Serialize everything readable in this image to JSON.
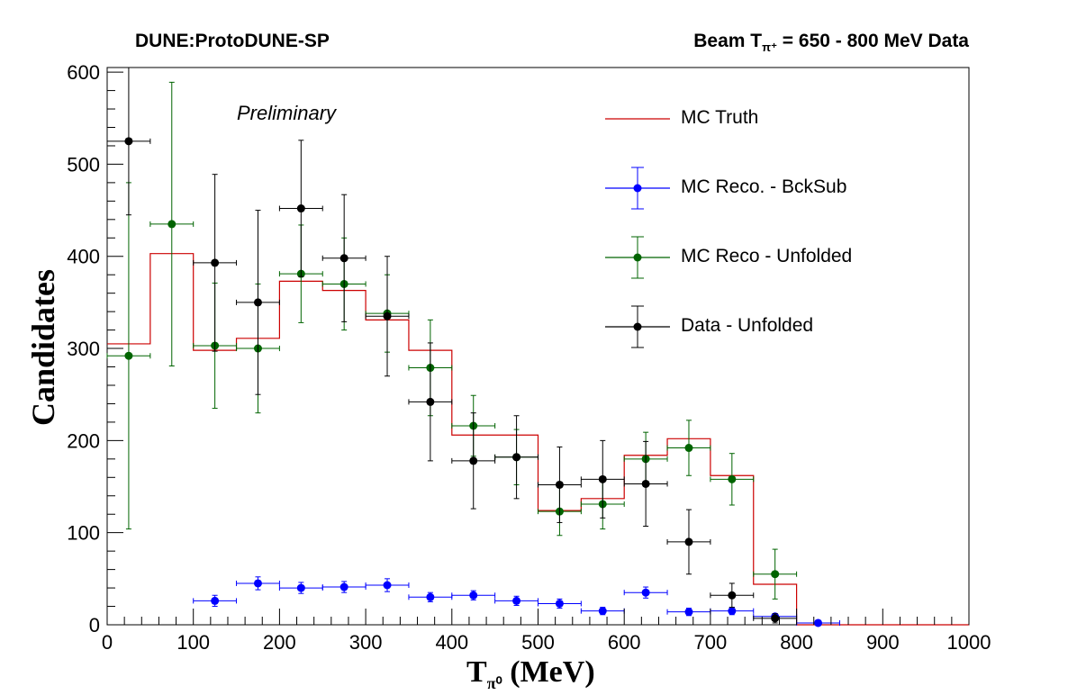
{
  "title_left": "DUNE:ProtoDUNE-SP",
  "title_right": {
    "prefix": "Beam T",
    "sub": "π⁺",
    "suffix": " = 650 - 800 MeV Data"
  },
  "annotation": "Preliminary",
  "chart_data": {
    "type": "scatter",
    "xlabel": {
      "main": "T",
      "sub": "π⁰",
      "suffix": " (MeV)"
    },
    "ylabel": "Candidates",
    "xlim": [
      0,
      1000
    ],
    "ylim": [
      0,
      605
    ],
    "x_ticks": [
      0,
      100,
      200,
      300,
      400,
      500,
      600,
      700,
      800,
      900,
      1000
    ],
    "y_ticks": [
      0,
      100,
      200,
      300,
      400,
      500,
      600
    ],
    "grid": false,
    "legend_position": "top-right",
    "bin_edges": [
      0,
      50,
      100,
      150,
      200,
      250,
      300,
      350,
      400,
      450,
      500,
      550,
      600,
      650,
      700,
      750,
      800,
      850,
      900,
      950,
      1000
    ],
    "series": [
      {
        "name": "MC Truth",
        "kind": "step",
        "color": "#cc0000",
        "values": [
          305,
          403,
          298,
          311,
          373,
          363,
          331,
          298,
          206,
          206,
          124,
          137,
          184,
          202,
          162,
          44,
          0,
          0,
          0,
          0
        ]
      },
      {
        "name": "MC Reco. - BckSub",
        "kind": "points",
        "color": "#0000ff",
        "x": [
          125,
          175,
          225,
          275,
          325,
          375,
          425,
          475,
          525,
          575,
          625,
          675,
          725,
          775,
          825
        ],
        "values": [
          26,
          45,
          40,
          41,
          43,
          30,
          32,
          26,
          23,
          15,
          35,
          14,
          15,
          9,
          2
        ],
        "errors": [
          6,
          7,
          6,
          6,
          7,
          5,
          5,
          5,
          5,
          4,
          6,
          4,
          4,
          3,
          2
        ]
      },
      {
        "name": "MC Reco - Unfolded",
        "kind": "points",
        "color": "#006400",
        "x": [
          25,
          75,
          125,
          175,
          225,
          275,
          325,
          375,
          425,
          475,
          525,
          575,
          625,
          675,
          725,
          775
        ],
        "values": [
          292,
          435,
          303,
          300,
          381,
          370,
          338,
          279,
          216,
          182,
          123,
          131,
          180,
          192,
          158,
          55
        ],
        "errors": [
          188,
          154,
          68,
          70,
          53,
          50,
          42,
          52,
          33,
          30,
          26,
          27,
          29,
          30,
          28,
          27
        ]
      },
      {
        "name": "Data - Unfolded",
        "kind": "points",
        "color": "#000000",
        "x": [
          25,
          125,
          175,
          225,
          275,
          325,
          375,
          425,
          475,
          525,
          575,
          625,
          675,
          725,
          775
        ],
        "values": [
          525,
          393,
          350,
          452,
          398,
          335,
          242,
          178,
          182,
          152,
          158,
          153,
          90,
          32,
          7
        ],
        "errors": [
          80,
          96,
          100,
          74,
          69,
          65,
          64,
          52,
          45,
          41,
          42,
          46,
          35,
          13,
          5
        ]
      }
    ]
  }
}
